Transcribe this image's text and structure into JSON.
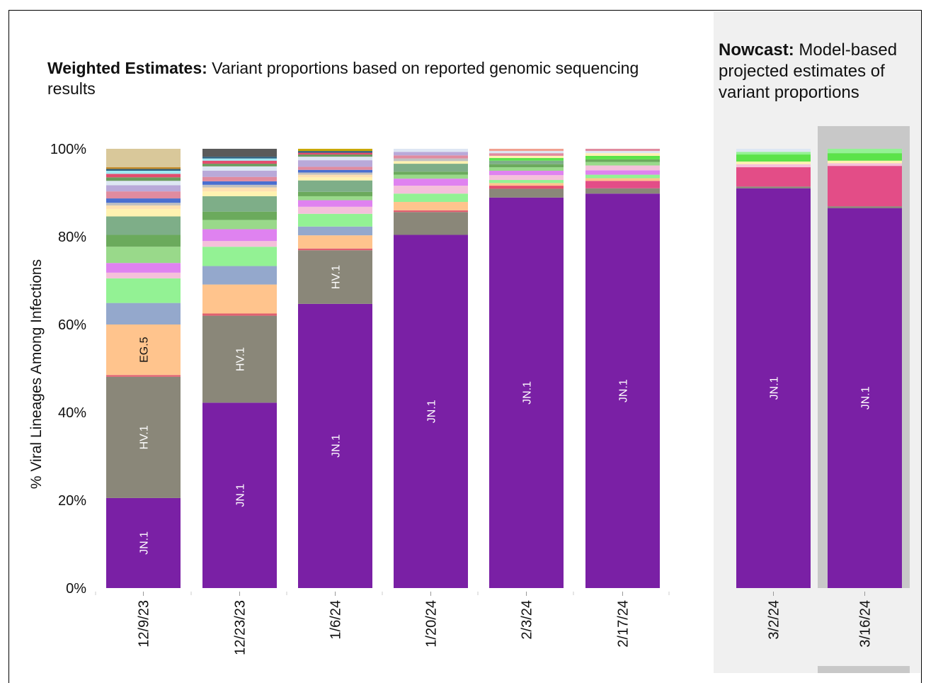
{
  "titles": {
    "weighted_bold": "Weighted Estimates:",
    "weighted_rest": " Variant proportions based on reported genomic sequencing results",
    "nowcast_bold": "Nowcast:",
    "nowcast_rest": " Model-based projected estimates of variant proportions"
  },
  "chart_data": {
    "type": "bar",
    "stacked": true,
    "ylabel": "% Viral Lineages Among Infections",
    "xlabel": "",
    "ylim": [
      0,
      100
    ],
    "yticks": [
      "0%",
      "20%",
      "40%",
      "60%",
      "80%",
      "100%"
    ],
    "categories": [
      "12/9/23",
      "12/23/23",
      "1/6/24",
      "1/20/24",
      "2/3/24",
      "2/17/24",
      "3/2/24",
      "3/16/24"
    ],
    "groups": [
      {
        "name": "Weighted Estimates",
        "categories": [
          "12/9/23",
          "12/23/23",
          "1/6/24",
          "1/20/24",
          "2/3/24",
          "2/17/24"
        ]
      },
      {
        "name": "Nowcast",
        "categories": [
          "3/2/24",
          "3/16/24"
        ]
      }
    ],
    "highlighted_category": "3/16/24",
    "bars": [
      {
        "date": "12/9/23",
        "segments": [
          {
            "label": "JN.1",
            "value": 20.5,
            "color": "#7a20a5"
          },
          {
            "label": "HV.1",
            "value": 27.6,
            "color": "#8a8779"
          },
          {
            "label": "",
            "value": 0.4,
            "color": "#e06070"
          },
          {
            "label": "EG.5",
            "value": 11.5,
            "color": "#ffc48d"
          },
          {
            "label": "",
            "value": 4.9,
            "color": "#94a8cc"
          },
          {
            "label": "",
            "value": 5.6,
            "color": "#93f294"
          },
          {
            "label": "",
            "value": 1.3,
            "color": "#f5c0da"
          },
          {
            "label": "",
            "value": 2.2,
            "color": "#df82f0"
          },
          {
            "label": "",
            "value": 3.7,
            "color": "#99d98a"
          },
          {
            "label": "",
            "value": 2.7,
            "color": "#6baa5c"
          },
          {
            "label": "",
            "value": 4.2,
            "color": "#7eae88"
          },
          {
            "label": "",
            "value": 1.7,
            "color": "#fff2b0"
          },
          {
            "label": "",
            "value": 0.8,
            "color": "#ffe0b0"
          },
          {
            "label": "",
            "value": 0.6,
            "color": "#c0c0c0"
          },
          {
            "label": "",
            "value": 1.0,
            "color": "#4a6fd0"
          },
          {
            "label": "",
            "value": 1.6,
            "color": "#e08b9f"
          },
          {
            "label": "",
            "value": 1.4,
            "color": "#b9a9d9"
          },
          {
            "label": "",
            "value": 1.0,
            "color": "#dde6f3"
          },
          {
            "label": "",
            "value": 0.8,
            "color": "#6b9b5e"
          },
          {
            "label": "",
            "value": 0.8,
            "color": "#e34d6e"
          },
          {
            "label": "",
            "value": 0.7,
            "color": "#9fe8f2"
          },
          {
            "label": "",
            "value": 0.4,
            "color": "#2d5f7f"
          },
          {
            "label": "",
            "value": 0.4,
            "color": "#c38b2a"
          }
        ]
      },
      {
        "date": "12/23/23",
        "segments": [
          {
            "label": "JN.1",
            "value": 42.2,
            "color": "#7a20a5"
          },
          {
            "label": "HV.1",
            "value": 19.8,
            "color": "#8a8779"
          },
          {
            "label": "",
            "value": 0.5,
            "color": "#e06070"
          },
          {
            "label": "",
            "value": 6.6,
            "color": "#ffc48d"
          },
          {
            "label": "",
            "value": 4.2,
            "color": "#94a8cc"
          },
          {
            "label": "",
            "value": 4.4,
            "color": "#93f294"
          },
          {
            "label": "",
            "value": 1.3,
            "color": "#f5c0da"
          },
          {
            "label": "",
            "value": 2.7,
            "color": "#df82f0"
          },
          {
            "label": "",
            "value": 2.1,
            "color": "#99d98a"
          },
          {
            "label": "",
            "value": 1.9,
            "color": "#6baa5c"
          },
          {
            "label": "",
            "value": 3.5,
            "color": "#7eae88"
          },
          {
            "label": "",
            "value": 1.1,
            "color": "#fff2b0"
          },
          {
            "label": "",
            "value": 0.9,
            "color": "#ffe0b0"
          },
          {
            "label": "",
            "value": 0.6,
            "color": "#c0c0c0"
          },
          {
            "label": "",
            "value": 0.8,
            "color": "#4a6fd0"
          },
          {
            "label": "",
            "value": 1.0,
            "color": "#e08b9f"
          },
          {
            "label": "",
            "value": 1.4,
            "color": "#b9a9d9"
          },
          {
            "label": "",
            "value": 1.0,
            "color": "#dde6f3"
          },
          {
            "label": "",
            "value": 0.6,
            "color": "#6b9b5e"
          },
          {
            "label": "",
            "value": 0.7,
            "color": "#e34d6e"
          },
          {
            "label": "",
            "value": 0.5,
            "color": "#9fe8f2"
          },
          {
            "label": "",
            "value": 0.4,
            "color": "#2d5f7f"
          },
          {
            "label": "",
            "value": 1.8,
            "color": "#5a5a5a"
          }
        ]
      },
      {
        "date": "1/6/24",
        "segments": [
          {
            "label": "JN.1",
            "value": 64.7,
            "color": "#7a20a5"
          },
          {
            "label": "HV.1",
            "value": 12.2,
            "color": "#8a8779"
          },
          {
            "label": "",
            "value": 0.4,
            "color": "#e06070"
          },
          {
            "label": "",
            "value": 3.0,
            "color": "#ffc48d"
          },
          {
            "label": "",
            "value": 2.0,
            "color": "#94a8cc"
          },
          {
            "label": "",
            "value": 2.9,
            "color": "#93f294"
          },
          {
            "label": "",
            "value": 1.6,
            "color": "#f5c0da"
          },
          {
            "label": "",
            "value": 1.5,
            "color": "#df82f0"
          },
          {
            "label": "",
            "value": 0.9,
            "color": "#99d98a"
          },
          {
            "label": "",
            "value": 1.0,
            "color": "#6baa5c"
          },
          {
            "label": "",
            "value": 2.6,
            "color": "#7eae88"
          },
          {
            "label": "",
            "value": 0.7,
            "color": "#fff2b0"
          },
          {
            "label": "",
            "value": 0.6,
            "color": "#ffe0b0"
          },
          {
            "label": "",
            "value": 0.5,
            "color": "#c0c0c0"
          },
          {
            "label": "",
            "value": 0.6,
            "color": "#4a6fd0"
          },
          {
            "label": "",
            "value": 0.7,
            "color": "#e08b9f"
          },
          {
            "label": "",
            "value": 1.5,
            "color": "#b9a9d9"
          },
          {
            "label": "",
            "value": 0.8,
            "color": "#dde6f3"
          },
          {
            "label": "",
            "value": 0.5,
            "color": "#6b9b5e"
          },
          {
            "label": "",
            "value": 0.4,
            "color": "#e34d6e"
          },
          {
            "label": "",
            "value": 0.4,
            "color": "#2d5f7f"
          },
          {
            "label": "",
            "value": 0.5,
            "color": "#c9a800"
          }
        ]
      },
      {
        "date": "1/20/24",
        "segments": [
          {
            "label": "JN.1",
            "value": 80.4,
            "color": "#7a20a5"
          },
          {
            "label": "",
            "value": 5.2,
            "color": "#8a8779"
          },
          {
            "label": "",
            "value": 0.4,
            "color": "#e06070"
          },
          {
            "label": "",
            "value": 1.9,
            "color": "#ffc48d"
          },
          {
            "label": "",
            "value": 1.9,
            "color": "#93f294"
          },
          {
            "label": "",
            "value": 1.8,
            "color": "#f5c0da"
          },
          {
            "label": "",
            "value": 1.6,
            "color": "#df82f0"
          },
          {
            "label": "",
            "value": 0.9,
            "color": "#99d98a"
          },
          {
            "label": "",
            "value": 0.7,
            "color": "#6baa5c"
          },
          {
            "label": "",
            "value": 1.8,
            "color": "#7eae88"
          },
          {
            "label": "",
            "value": 0.6,
            "color": "#fff2b0"
          },
          {
            "label": "",
            "value": 0.6,
            "color": "#c0c0c0"
          },
          {
            "label": "",
            "value": 0.7,
            "color": "#e08b9f"
          },
          {
            "label": "",
            "value": 0.8,
            "color": "#b9a9d9"
          },
          {
            "label": "",
            "value": 0.7,
            "color": "#dde6f3"
          }
        ]
      },
      {
        "date": "2/3/24",
        "segments": [
          {
            "label": "JN.1",
            "value": 88.9,
            "color": "#7a20a5"
          },
          {
            "label": "",
            "value": 2.0,
            "color": "#8a8779"
          },
          {
            "label": "",
            "value": 0.7,
            "color": "#e34d6e"
          },
          {
            "label": "",
            "value": 0.6,
            "color": "#ffc48d"
          },
          {
            "label": "",
            "value": 0.7,
            "color": "#93f294"
          },
          {
            "label": "",
            "value": 1.1,
            "color": "#f5c0da"
          },
          {
            "label": "",
            "value": 1.0,
            "color": "#df82f0"
          },
          {
            "label": "",
            "value": 0.8,
            "color": "#99d98a"
          },
          {
            "label": "",
            "value": 0.7,
            "color": "#6baa5c"
          },
          {
            "label": "",
            "value": 0.8,
            "color": "#7eae88"
          },
          {
            "label": "",
            "value": 0.6,
            "color": "#5be34a"
          },
          {
            "label": "",
            "value": 0.5,
            "color": "#fff2b0"
          },
          {
            "label": "",
            "value": 0.6,
            "color": "#e08b9f"
          },
          {
            "label": "",
            "value": 0.5,
            "color": "#dde6f3"
          },
          {
            "label": "",
            "value": 0.5,
            "color": "#f0a090"
          }
        ]
      },
      {
        "date": "2/17/24",
        "segments": [
          {
            "label": "JN.1",
            "value": 89.8,
            "color": "#7a20a5"
          },
          {
            "label": "",
            "value": 1.2,
            "color": "#8a8779"
          },
          {
            "label": "",
            "value": 1.7,
            "color": "#e34d87"
          },
          {
            "label": "",
            "value": 0.6,
            "color": "#ffc48d"
          },
          {
            "label": "",
            "value": 0.8,
            "color": "#93f294"
          },
          {
            "label": "",
            "value": 1.0,
            "color": "#df82f0"
          },
          {
            "label": "",
            "value": 1.1,
            "color": "#f5c0da"
          },
          {
            "label": "",
            "value": 0.8,
            "color": "#99d98a"
          },
          {
            "label": "",
            "value": 0.6,
            "color": "#6baa5c"
          },
          {
            "label": "",
            "value": 0.8,
            "color": "#5be34a"
          },
          {
            "label": "",
            "value": 0.6,
            "color": "#fff2b0"
          },
          {
            "label": "",
            "value": 0.5,
            "color": "#dde6f3"
          },
          {
            "label": "",
            "value": 0.5,
            "color": "#e08b9f"
          }
        ]
      },
      {
        "date": "3/2/24",
        "segments": [
          {
            "label": "JN.1",
            "value": 91.0,
            "color": "#7a20a5"
          },
          {
            "label": "",
            "value": 0.4,
            "color": "#8a8779"
          },
          {
            "label": "",
            "value": 4.4,
            "color": "#e34d87"
          },
          {
            "label": "",
            "value": 0.7,
            "color": "#f5c0da"
          },
          {
            "label": "",
            "value": 0.6,
            "color": "#fff2b0"
          },
          {
            "label": "",
            "value": 1.6,
            "color": "#5be34a"
          },
          {
            "label": "",
            "value": 0.6,
            "color": "#93f294"
          },
          {
            "label": "",
            "value": 0.7,
            "color": "#dde6f3"
          }
        ]
      },
      {
        "date": "3/16/24",
        "segments": [
          {
            "label": "JN.1",
            "value": 86.5,
            "color": "#7a20a5"
          },
          {
            "label": "",
            "value": 0.4,
            "color": "#8a8779"
          },
          {
            "label": "",
            "value": 9.2,
            "color": "#e34d87"
          },
          {
            "label": "",
            "value": 0.6,
            "color": "#f5c0da"
          },
          {
            "label": "",
            "value": 0.6,
            "color": "#fff2b0"
          },
          {
            "label": "",
            "value": 1.7,
            "color": "#5be34a"
          },
          {
            "label": "",
            "value": 1.0,
            "color": "#93f294"
          }
        ]
      }
    ]
  }
}
